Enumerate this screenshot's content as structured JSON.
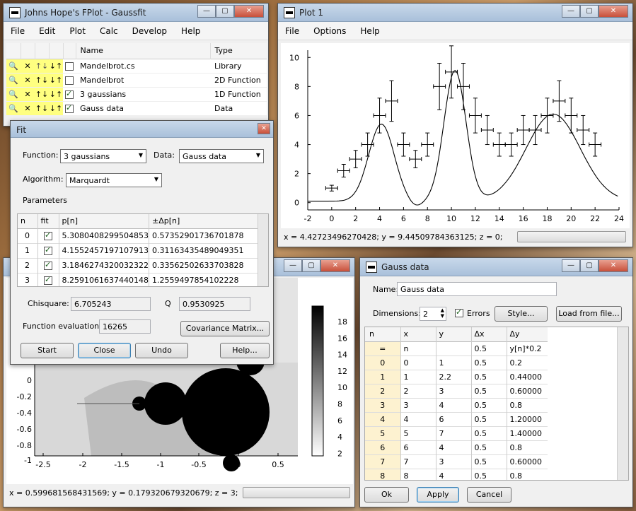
{
  "main_window": {
    "title": "Johns Hope's FPlot - Gaussfit",
    "menu": [
      "File",
      "Edit",
      "Plot",
      "Calc",
      "Develop",
      "Help"
    ],
    "headers": {
      "name": "Name",
      "type": "Type"
    },
    "items": [
      {
        "name": "Mandelbrot.cs",
        "type": "Library",
        "checked": false
      },
      {
        "name": "Mandelbrot",
        "type": "2D Function",
        "checked": false
      },
      {
        "name": "3 gaussians",
        "type": "1D Function",
        "checked": true
      },
      {
        "name": "Gauss data",
        "type": "Data",
        "checked": true
      }
    ]
  },
  "fit_dialog": {
    "title": "Fit",
    "function_label": "Function:",
    "function_value": "3 gaussians",
    "data_label": "Data:",
    "data_value": "Gauss data",
    "algorithm_label": "Algorithm:",
    "algorithm_value": "Marquardt",
    "parameters_label": "Parameters",
    "headers": {
      "n": "n",
      "fit": "fit",
      "p": "p[n]",
      "dp": "±Δp[n]"
    },
    "params": [
      {
        "n": "0",
        "p": "5.3080408299504853",
        "dp": "0.57352901736701878"
      },
      {
        "n": "1",
        "p": "4.1552457197107913",
        "dp": "0.31163435489049351"
      },
      {
        "n": "2",
        "p": "3.1846274320032322",
        "dp": "0.33562502633703828"
      },
      {
        "n": "3",
        "p": "8.2591061637440148",
        "dp": "1.2559497854102228"
      }
    ],
    "chisquare_label": "Chisquare:",
    "chisquare_value": "6.705243",
    "q_label": "Q",
    "q_value": "0.9530925",
    "evals_label": "Function evaluations:",
    "evals_value": "16265",
    "covariance_button": "Covariance Matrix...",
    "start_button": "Start",
    "close_button": "Close",
    "undo_button": "Undo",
    "help_button": "Help..."
  },
  "plot1": {
    "title": "Plot 1",
    "menu": [
      "File",
      "Options",
      "Help"
    ],
    "status": "x = 4.42723496270428; y = 9.44509784363125; z = 0;",
    "chart_data": {
      "type": "scatter",
      "xlim": [
        -2,
        24
      ],
      "ylim": [
        -0.5,
        10.5
      ],
      "xticks": [
        "-2",
        "0",
        "2",
        "4",
        "6",
        "8",
        "10",
        "12",
        "14",
        "16",
        "18",
        "20",
        "22",
        "24"
      ],
      "yticks": [
        "0",
        "2",
        "4",
        "6",
        "8",
        "10"
      ],
      "series": [
        {
          "values_x": [
            0,
            1,
            2,
            3,
            4,
            5,
            6,
            7,
            8,
            9,
            10,
            11,
            12,
            13,
            14,
            15,
            16,
            17,
            18,
            19,
            20,
            21,
            22
          ],
          "values_y": [
            1,
            2.2,
            3,
            4,
            6,
            7,
            4,
            3,
            4,
            8,
            9,
            8,
            6,
            5,
            4,
            4,
            5,
            5,
            6,
            7,
            6,
            5,
            4
          ],
          "dx": 0.5,
          "dy": [
            0.2,
            0.44,
            0.6,
            0.8,
            1.2,
            1.4,
            0.8,
            0.6,
            0.8,
            1.6,
            1.8,
            1.6,
            1.2,
            1.0,
            0.8,
            0.8,
            1.0,
            1.0,
            1.2,
            1.4,
            1.2,
            1.0,
            0.8
          ]
        }
      ],
      "fit_curve": {
        "p": [
          5.308040829950485,
          4.155245719710791,
          3.184627432003232,
          8.259106163744015
        ]
      }
    }
  },
  "mandel_window": {
    "status": "x = 0.599681568431569; y = 0.179320679320679; z = 3;",
    "xticks": [
      "-2.5",
      "-2",
      "-1.5",
      "-1",
      "-0.5",
      "0",
      "0.5"
    ],
    "yticks": [
      "0",
      "-0.2",
      "-0.4",
      "-0.6",
      "-0.8",
      "-1"
    ],
    "colorbar_ticks": [
      "18",
      "16",
      "14",
      "12",
      "10",
      "8",
      "6",
      "4",
      "2"
    ]
  },
  "gauss_window": {
    "title": "Gauss data",
    "name_label": "Name:",
    "name_value": "Gauss data",
    "dimensions_label": "Dimensions:",
    "dimensions_value": "2",
    "errors_label": "Errors",
    "style_button": "Style...",
    "load_button": "Load from file...",
    "headers": [
      "n",
      "x",
      "y",
      "Δx",
      "Δy"
    ],
    "formula_row": {
      "n": "=",
      "x": "n",
      "y": "",
      "dx": "0.5",
      "dy": "y[n]*0.2"
    },
    "rows": [
      {
        "n": "0",
        "x": "0",
        "y": "1",
        "dx": "0.5",
        "dy": "0.2"
      },
      {
        "n": "1",
        "x": "1",
        "y": "2.2",
        "dx": "0.5",
        "dy": "0.44000"
      },
      {
        "n": "2",
        "x": "2",
        "y": "3",
        "dx": "0.5",
        "dy": "0.60000"
      },
      {
        "n": "3",
        "x": "3",
        "y": "4",
        "dx": "0.5",
        "dy": "0.8"
      },
      {
        "n": "4",
        "x": "4",
        "y": "6",
        "dx": "0.5",
        "dy": "1.20000"
      },
      {
        "n": "5",
        "x": "5",
        "y": "7",
        "dx": "0.5",
        "dy": "1.40000"
      },
      {
        "n": "6",
        "x": "6",
        "y": "4",
        "dx": "0.5",
        "dy": "0.8"
      },
      {
        "n": "7",
        "x": "7",
        "y": "3",
        "dx": "0.5",
        "dy": "0.60000"
      },
      {
        "n": "8",
        "x": "8",
        "y": "4",
        "dx": "0.5",
        "dy": "0.8"
      }
    ],
    "ok_button": "Ok",
    "apply_button": "Apply",
    "cancel_button": "Cancel"
  }
}
